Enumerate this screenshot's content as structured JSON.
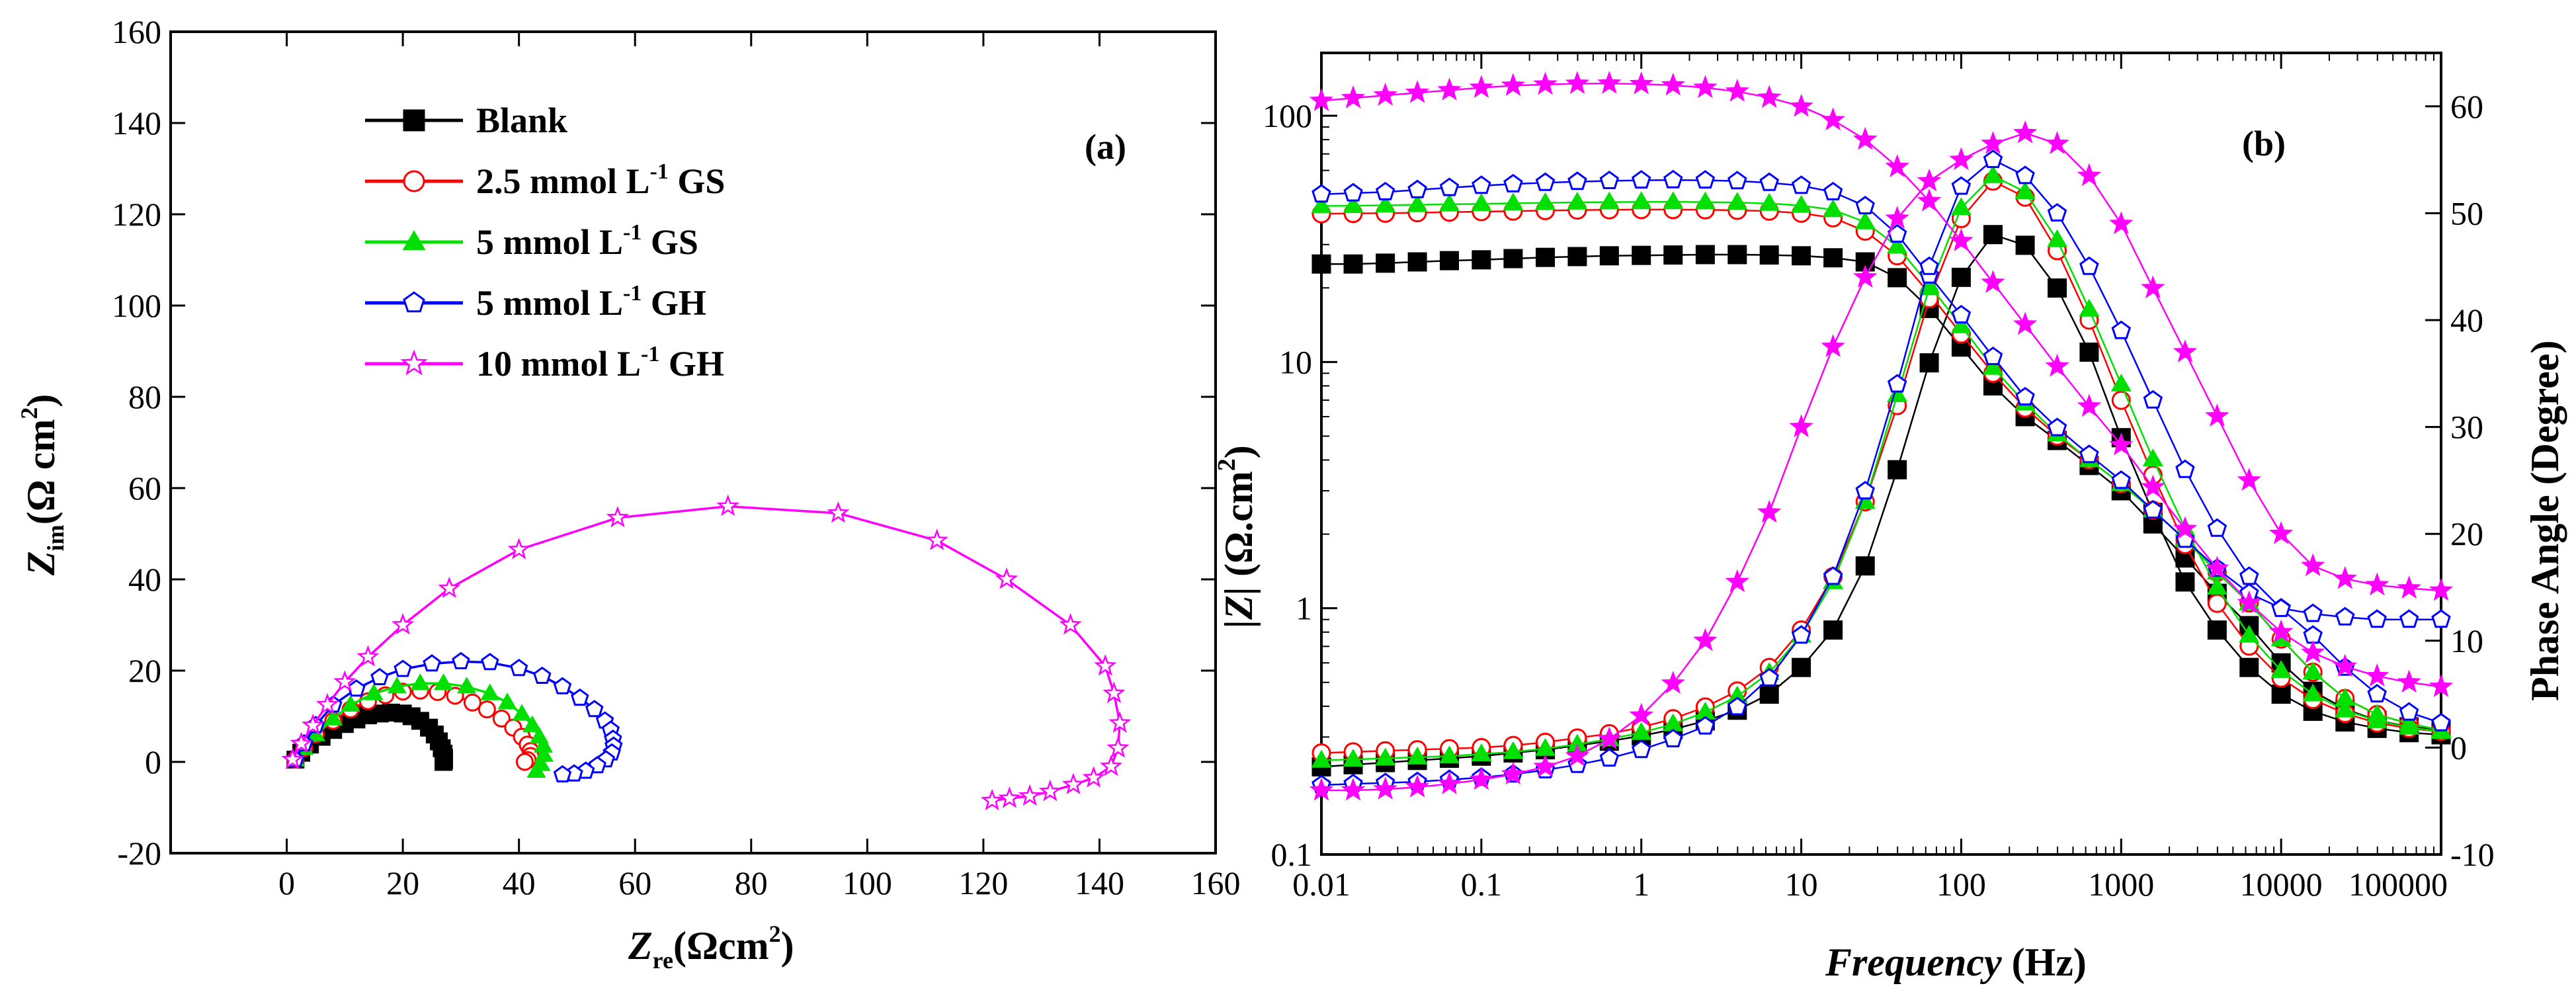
{
  "colors": {
    "Blank": "#000000",
    "GS_2_5": "#ff0000",
    "GS_5": "#00e000",
    "GH_5": "#0000ff",
    "GH_10": "#ff00ff"
  },
  "chart_data": [
    {
      "id": "a",
      "type": "scatter",
      "panel_label": "(a)",
      "xlabel": {
        "main": "Z",
        "sub": "re",
        "unit": "(Ωcm",
        "sup": "2",
        "close": ")"
      },
      "ylabel": {
        "main": "Z",
        "sub": "im",
        "unit": "(Ω cm",
        "sup": "2",
        "close": ")"
      },
      "xlim": [
        -20,
        160
      ],
      "ylim": [
        -20,
        160
      ],
      "xticks": [
        0,
        20,
        40,
        60,
        80,
        100,
        120,
        140,
        160
      ],
      "yticks": [
        -20,
        0,
        20,
        40,
        60,
        80,
        100,
        120,
        140,
        160
      ],
      "grid": false,
      "legend_position": "top-left",
      "legend": [
        {
          "key": "Blank",
          "text": "Blank",
          "pre": "Blank",
          "sup": "",
          "post": ""
        },
        {
          "key": "GS_2_5",
          "text": "2.5 mmol L-1 GS",
          "pre": "2.5 mmol L",
          "sup": "-1",
          "post": " GS"
        },
        {
          "key": "GS_5",
          "text": "5 mmol L-1 GS",
          "pre": "5 mmol L",
          "sup": "-1",
          "post": " GS"
        },
        {
          "key": "GH_5",
          "text": "5 mmol L-1 GH",
          "pre": "5 mmol L",
          "sup": "-1",
          "post": " GH"
        },
        {
          "key": "GH_10",
          "text": "10 mmol L-1 GH",
          "pre": "10 mmol L",
          "sup": "-1",
          "post": " GH"
        }
      ],
      "series": [
        {
          "key": "Blank",
          "marker": "square-filled",
          "x": [
            1.5,
            2.5,
            4,
            6,
            8,
            10,
            12,
            14,
            16,
            18,
            20,
            21.5,
            23,
            24.5,
            25.5,
            26.2,
            26.7,
            27,
            27.1,
            27.1,
            27
          ],
          "y": [
            0.5,
            2,
            3.8,
            5.5,
            7,
            8.3,
            9.3,
            10.2,
            10.6,
            10.8,
            10.6,
            10,
            9,
            7.5,
            6,
            4.5,
            3,
            1.8,
            0.9,
            0.3,
            0
          ]
        },
        {
          "key": "GS_2_5",
          "marker": "circle-open",
          "x": [
            1.5,
            3,
            5,
            8,
            11,
            14,
            17,
            20,
            23,
            26,
            29,
            32,
            34.5,
            37,
            39,
            40.5,
            41.5,
            42,
            42,
            41.5,
            41
          ],
          "y": [
            0.5,
            3,
            6,
            9,
            11.5,
            13.3,
            14.6,
            15.4,
            15.6,
            15.3,
            14.5,
            13,
            11.5,
            9.5,
            7.5,
            5.5,
            3.8,
            2.4,
            1.3,
            0.4,
            0
          ]
        },
        {
          "key": "GS_5",
          "marker": "triangle-filled",
          "x": [
            1.5,
            3,
            5,
            8,
            11,
            15,
            19,
            23,
            27,
            31,
            35,
            38,
            40.5,
            42.3,
            43.5,
            44.2,
            44.3,
            43.8,
            43
          ],
          "y": [
            0.5,
            3,
            6,
            9.5,
            12.5,
            15,
            16.5,
            17.2,
            17.2,
            16.5,
            15,
            13,
            10.5,
            8,
            5.5,
            3.5,
            1.5,
            -0.5,
            -2
          ]
        },
        {
          "key": "GH_5",
          "marker": "pentagon-open",
          "x": [
            1.5,
            3,
            5,
            8,
            12,
            16,
            20,
            25,
            30,
            35,
            40,
            44,
            47.5,
            50.5,
            53,
            54.8,
            55.8,
            56.2,
            56.3,
            56,
            55,
            53.5,
            51.5,
            49.5,
            47.5
          ],
          "y": [
            0.5,
            4,
            8,
            12.5,
            16,
            18.5,
            20.3,
            21.5,
            22,
            21.8,
            20.5,
            18.8,
            16.5,
            14,
            11.5,
            9,
            7,
            5,
            3.5,
            2,
            0.5,
            -0.8,
            -2,
            -2.6,
            -2.8
          ]
        },
        {
          "key": "GH_10",
          "marker": "star-open",
          "x": [
            1,
            2.5,
            4.5,
            7,
            10,
            14,
            20,
            28,
            40,
            57,
            76,
            95,
            112,
            124,
            135,
            141,
            142.5,
            143.5,
            143.2,
            142,
            139,
            135.5,
            131.5,
            128,
            124.5,
            121.5
          ],
          "y": [
            0.5,
            4,
            8,
            12.5,
            17.5,
            23,
            30,
            38,
            46.5,
            53.5,
            56,
            54.5,
            48.5,
            40,
            30,
            21,
            15,
            8.5,
            3,
            -1,
            -3.5,
            -5,
            -6.5,
            -7.5,
            -8,
            -8.5
          ]
        }
      ]
    },
    {
      "id": "b",
      "type": "scatter",
      "panel_label": "(b)",
      "xscale": "log",
      "yscale_left": "log",
      "xlabel": {
        "main": "Frequency",
        "unit": " (Hz)"
      },
      "ylabel_left": {
        "main": "|Z|",
        "unit": " (Ω.cm",
        "sup": "2",
        "close": ")"
      },
      "ylabel_right": "Phase Angle (Degree)",
      "xlim": [
        0.01,
        100000
      ],
      "ylim_left": [
        0.1,
        180
      ],
      "ylim_right": [
        -10,
        65
      ],
      "xticks": [
        0.01,
        0.1,
        1,
        10,
        100,
        1000,
        10000,
        100000
      ],
      "xtick_labels": [
        "0.01",
        "0.1",
        "1",
        "10",
        "100",
        "1000",
        "10000",
        "100000"
      ],
      "yticks_left": [
        0.1,
        1,
        10,
        100
      ],
      "ytick_labels_left": [
        "0.1",
        "1",
        "10",
        "100"
      ],
      "yticks_right": [
        -10,
        0,
        10,
        20,
        30,
        40,
        50,
        60
      ],
      "grid": false,
      "freq": [
        0.01,
        0.0158,
        0.0251,
        0.0398,
        0.0631,
        0.1,
        0.158,
        0.251,
        0.398,
        0.631,
        1,
        1.58,
        2.51,
        3.98,
        6.31,
        10,
        15.8,
        25.1,
        39.8,
        63.1,
        100,
        158,
        251,
        398,
        631,
        1000,
        1580,
        2510,
        3980,
        6310,
        10000,
        15800,
        25100,
        39800,
        63100,
        100000
      ],
      "series": [
        {
          "key": "Blank",
          "marker": "square-filled",
          "modulus": [
            25,
            25,
            25.2,
            25.5,
            25.8,
            26,
            26.3,
            26.6,
            26.8,
            27,
            27.1,
            27.2,
            27.3,
            27.3,
            27.2,
            27,
            26.5,
            25.5,
            22,
            16.5,
            11.5,
            8,
            6,
            4.8,
            3.8,
            3,
            2.2,
            1.6,
            1.15,
            0.85,
            0.6,
            0.46,
            0.39,
            0.35,
            0.33,
            0.32
          ],
          "phase": [
            -1.8,
            -1.6,
            -1.4,
            -1.2,
            -1,
            -0.8,
            -0.5,
            -0.2,
            0.2,
            0.6,
            1.1,
            1.7,
            2.5,
            3.5,
            5,
            7.5,
            11,
            17,
            26,
            36,
            44,
            48,
            47,
            43,
            37,
            29,
            22,
            15.5,
            11,
            7.5,
            5,
            3.4,
            2.4,
            1.8,
            1.4,
            1.2
          ]
        },
        {
          "key": "GS_2_5",
          "marker": "circle-open",
          "modulus": [
            40,
            40.1,
            40.2,
            40.4,
            40.6,
            40.8,
            41,
            41.2,
            41.4,
            41.5,
            41.6,
            41.6,
            41.5,
            41.3,
            41,
            40.2,
            38.5,
            34,
            27,
            19,
            13,
            9,
            6.5,
            5,
            4,
            3.2,
            2.5,
            1.9,
            1.4,
            1.05,
            0.75,
            0.55,
            0.43,
            0.37,
            0.34,
            0.32
          ],
          "phase": [
            -0.5,
            -0.4,
            -0.3,
            -0.2,
            -0.1,
            0,
            0.2,
            0.5,
            0.9,
            1.3,
            1.9,
            2.7,
            3.8,
            5.3,
            7.5,
            11,
            16,
            23,
            32,
            42,
            49.5,
            53,
            51.5,
            46.5,
            40,
            32.5,
            25.5,
            19,
            13.5,
            9.5,
            6.5,
            4.5,
            3.2,
            2.3,
            1.8,
            1.5
          ]
        },
        {
          "key": "GS_5",
          "marker": "triangle-filled",
          "modulus": [
            43,
            43.1,
            43.3,
            43.5,
            43.7,
            43.9,
            44.1,
            44.3,
            44.5,
            44.6,
            44.7,
            44.7,
            44.6,
            44.4,
            44,
            43.2,
            41.5,
            37,
            29.5,
            20.5,
            14,
            9.5,
            6.8,
            5.1,
            4,
            3.2,
            2.5,
            1.9,
            1.4,
            1.05,
            0.75,
            0.55,
            0.43,
            0.37,
            0.34,
            0.32
          ],
          "phase": [
            -1.2,
            -1.1,
            -1,
            -0.9,
            -0.8,
            -0.6,
            -0.4,
            -0.1,
            0.3,
            0.8,
            1.4,
            2.2,
            3.3,
            4.8,
            7,
            10.5,
            15.5,
            23,
            33,
            43,
            50.5,
            53.5,
            52,
            47.5,
            41,
            34,
            27,
            20.5,
            15,
            10.5,
            7.2,
            5,
            3.5,
            2.5,
            1.9,
            1.5
          ]
        },
        {
          "key": "GH_5",
          "marker": "pentagon-open",
          "modulus": [
            48,
            48.5,
            49,
            50,
            51,
            52,
            52.8,
            53.5,
            54,
            54.4,
            54.7,
            54.8,
            54.7,
            54.3,
            53.5,
            52,
            49,
            43,
            33,
            22.5,
            15.5,
            10.5,
            7.2,
            5.4,
            4.2,
            3.3,
            2.5,
            1.9,
            1.45,
            1.15,
            1,
            0.95,
            0.92,
            0.9,
            0.9,
            0.9
          ],
          "phase": [
            -3.5,
            -3.4,
            -3.3,
            -3.2,
            -3,
            -2.8,
            -2.5,
            -2.1,
            -1.6,
            -1,
            -0.2,
            0.8,
            2,
            3.8,
            6.5,
            10.5,
            16,
            24,
            34,
            45,
            52.5,
            55,
            53.5,
            50,
            45,
            39,
            32.5,
            26,
            20.5,
            16,
            13,
            10.5,
            7.5,
            5,
            3.3,
            2.3
          ]
        },
        {
          "key": "GH_10",
          "marker": "star-filled",
          "modulus": [
            115,
            118,
            121,
            124,
            127,
            130,
            132.5,
            134,
            135,
            135.2,
            134.5,
            133,
            130,
            125.5,
            118.5,
            109,
            96,
            80,
            62,
            45,
            31,
            21,
            14.2,
            9.6,
            6.6,
            4.6,
            3.1,
            2.1,
            1.45,
            1.05,
            0.8,
            0.66,
            0.58,
            0.53,
            0.5,
            0.48
          ],
          "phase": [
            -4,
            -4,
            -3.9,
            -3.7,
            -3.4,
            -3,
            -2.5,
            -1.8,
            -0.8,
            0.8,
            3,
            6,
            10,
            15.5,
            22,
            30,
            37.5,
            44,
            49.5,
            53,
            55,
            56.5,
            57.5,
            56.5,
            53.5,
            49,
            43,
            37,
            31,
            25,
            20,
            17,
            15.8,
            15.2,
            14.9,
            14.7
          ]
        }
      ]
    }
  ]
}
